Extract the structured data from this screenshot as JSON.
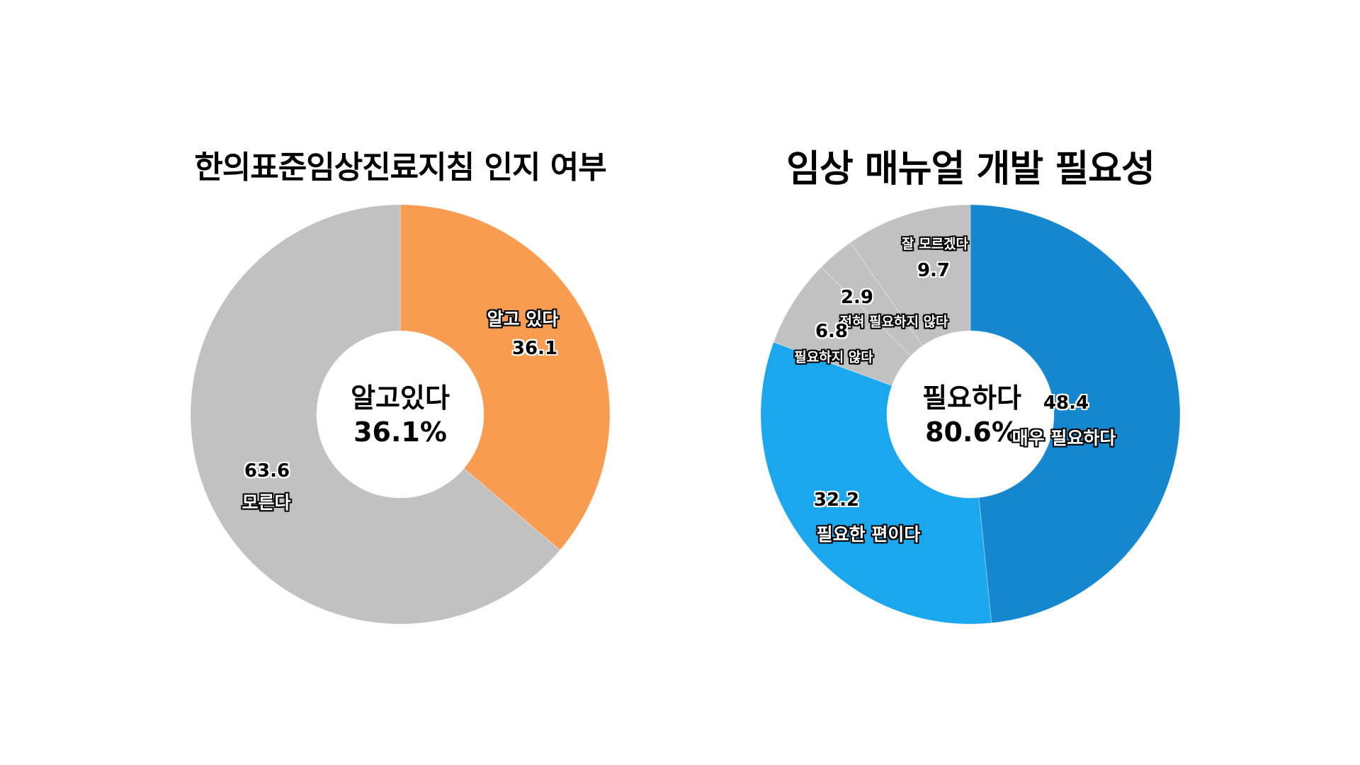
{
  "chart_data": [
    {
      "type": "pie",
      "subtype": "donut",
      "title": "한의표준임상진료지침 인지 여부",
      "center_label": "알고있다",
      "center_value": "36.1%",
      "start_angle_deg": 0,
      "direction": "clockwise",
      "slices": [
        {
          "label": "알고 있다",
          "value": 36.1,
          "color": "#F79C50"
        },
        {
          "label": "모른다",
          "value": 63.6,
          "color": "#C1C1C1"
        }
      ]
    },
    {
      "type": "pie",
      "subtype": "donut",
      "title": "임상 매뉴얼 개발 필요성",
      "center_label": "필요하다",
      "center_value": "80.6%",
      "start_angle_deg": 0,
      "direction": "clockwise",
      "slices": [
        {
          "label": "매우 필요하다",
          "value": 48.4,
          "color": "#1487CF"
        },
        {
          "label": "필요한 편이다",
          "value": 32.2,
          "color": "#1AA7EE"
        },
        {
          "label": "필요하지 않다",
          "value": 6.8,
          "color": "#C1C1C1"
        },
        {
          "label": "전혀 필요하지 않다",
          "value": 2.9,
          "color": "#C1C1C1"
        },
        {
          "label": "잘 모르겠다",
          "value": 9.7,
          "color": "#C1C1C1"
        }
      ]
    }
  ],
  "left": {
    "title": "한의표준임상진료지침 인지 여부",
    "center_label": "알고있다",
    "center_value": "36.1%",
    "labels": {
      "know_name": "알고 있다",
      "know_value": "36.1",
      "dontknow_name": "모른다",
      "dontknow_value": "63.6"
    }
  },
  "right": {
    "title": "임상 매뉴얼 개발 필요성",
    "center_label": "필요하다",
    "center_value": "80.6%",
    "labels": {
      "very_name": "매우 필요하다",
      "very_value": "48.4",
      "somewhat_name": "필요한 편이다",
      "somewhat_value": "32.2",
      "not_name": "필요하지 않다",
      "not_value": "6.8",
      "never_name": "전혀 필요하지 않다",
      "never_value": "2.9",
      "unsure_name": "잘 모르겠다",
      "unsure_value": "9.7"
    }
  }
}
